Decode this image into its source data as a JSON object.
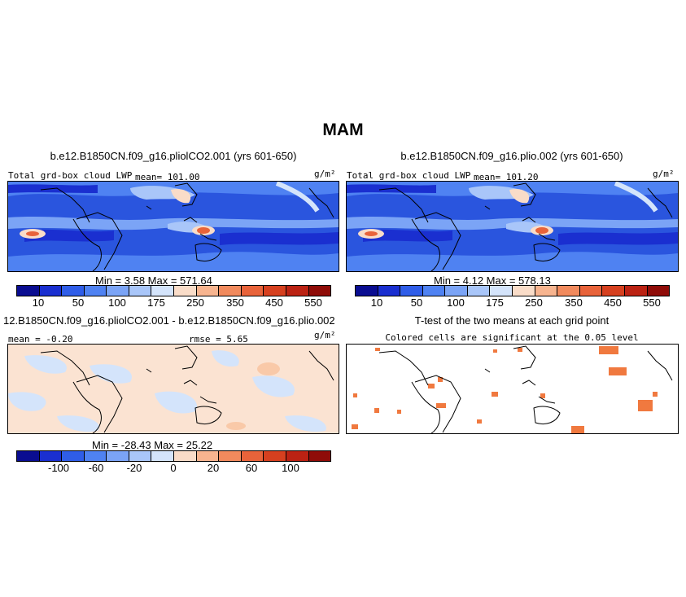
{
  "figure": {
    "title": "MAM"
  },
  "chart_data": [
    {
      "type": "heatmap",
      "title": "b.e12.B1850CN.f09_g16.pliolCO2.001 (yrs 601-650)",
      "left_label": "Total grd-box cloud LWP",
      "mean_label": "mean= 101.00",
      "units": "g/m²",
      "min_max_label": "Min =    3.58  Max = 571.64",
      "colorbar_levels": [
        "10",
        "50",
        "100",
        "175",
        "250",
        "350",
        "450",
        "550"
      ],
      "colorbar_colors": [
        "#0a0d91",
        "#1a2fd0",
        "#2f5de8",
        "#4f82f2",
        "#7ba4f6",
        "#a9c6f9",
        "#d4e4fb",
        "#f9dcc8",
        "#f7b48f",
        "#f18a5d",
        "#e8633a",
        "#d6401f",
        "#bb2213",
        "#8f0c08"
      ]
    },
    {
      "type": "heatmap",
      "title": "b.e12.B1850CN.f09_g16.plio.002 (yrs 601-650)",
      "left_label": "Total grd-box cloud LWP",
      "mean_label": "mean= 101.20",
      "units": "g/m²",
      "min_max_label": "Min =    4.12  Max = 578.13",
      "colorbar_levels": [
        "10",
        "50",
        "100",
        "175",
        "250",
        "350",
        "450",
        "550"
      ],
      "colorbar_colors": [
        "#0a0d91",
        "#1a2fd0",
        "#2f5de8",
        "#4f82f2",
        "#7ba4f6",
        "#a9c6f9",
        "#d4e4fb",
        "#f9dcc8",
        "#f7b48f",
        "#f18a5d",
        "#e8633a",
        "#d6401f",
        "#bb2213",
        "#8f0c08"
      ]
    },
    {
      "type": "heatmap",
      "title": "12.B1850CN.f09_g16.pliolCO2.001 - b.e12.B1850CN.f09_g16.plio.002",
      "left_label": "mean =  -0.20",
      "mean_label": "rmse =   5.65",
      "units": "g/m²",
      "min_max_label": "Min = -28.43  Max =  25.22",
      "colorbar_levels": [
        "-100",
        "-60",
        "-20",
        "0",
        "20",
        "60",
        "100"
      ],
      "colorbar_colors": [
        "#0a0d91",
        "#1a2fd0",
        "#2f5de8",
        "#4f82f2",
        "#7ba4f6",
        "#a9c6f9",
        "#d4e4fb",
        "#f9dcc8",
        "#f7b48f",
        "#f18a5d",
        "#e8633a",
        "#d6401f",
        "#bb2213",
        "#8f0c08"
      ]
    },
    {
      "type": "heatmap",
      "title": "T-test of the two means at each grid point",
      "subtitle": "Colored cells are significant at the 0.05 level",
      "significance_color": "#f0793f"
    }
  ],
  "colors": {
    "ocean_deep": "#1f45d6",
    "ocean_mid": "#3f6fe6",
    "light_blue": "#a9c6f9",
    "peach": "#f9dcc8",
    "red": "#e8633a",
    "diff_blue": "#d4e4fb",
    "diff_peach": "#fbe3d2"
  }
}
